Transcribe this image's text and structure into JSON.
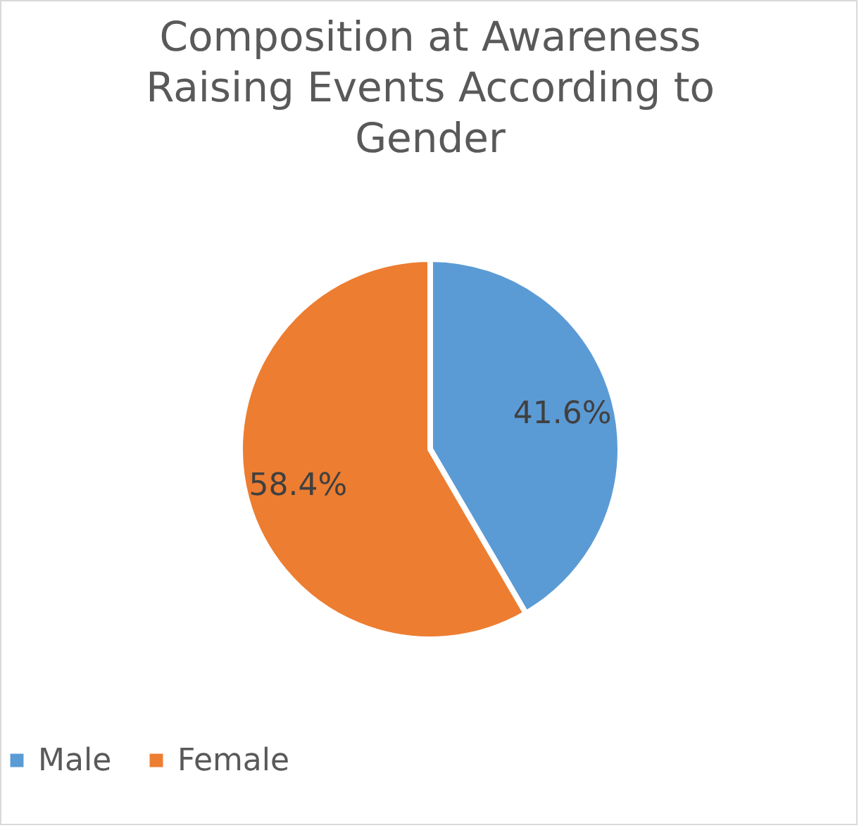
{
  "chart_data": {
    "type": "pie",
    "title": "Composition at Awareness Raising Events According to Gender",
    "categories": [
      "Male",
      "Female"
    ],
    "values": [
      41.6,
      58.4
    ],
    "colors": [
      "#5b9bd5",
      "#ed7d31"
    ],
    "value_labels": [
      "41.6%",
      "58.4%"
    ],
    "legend": "bottom"
  }
}
